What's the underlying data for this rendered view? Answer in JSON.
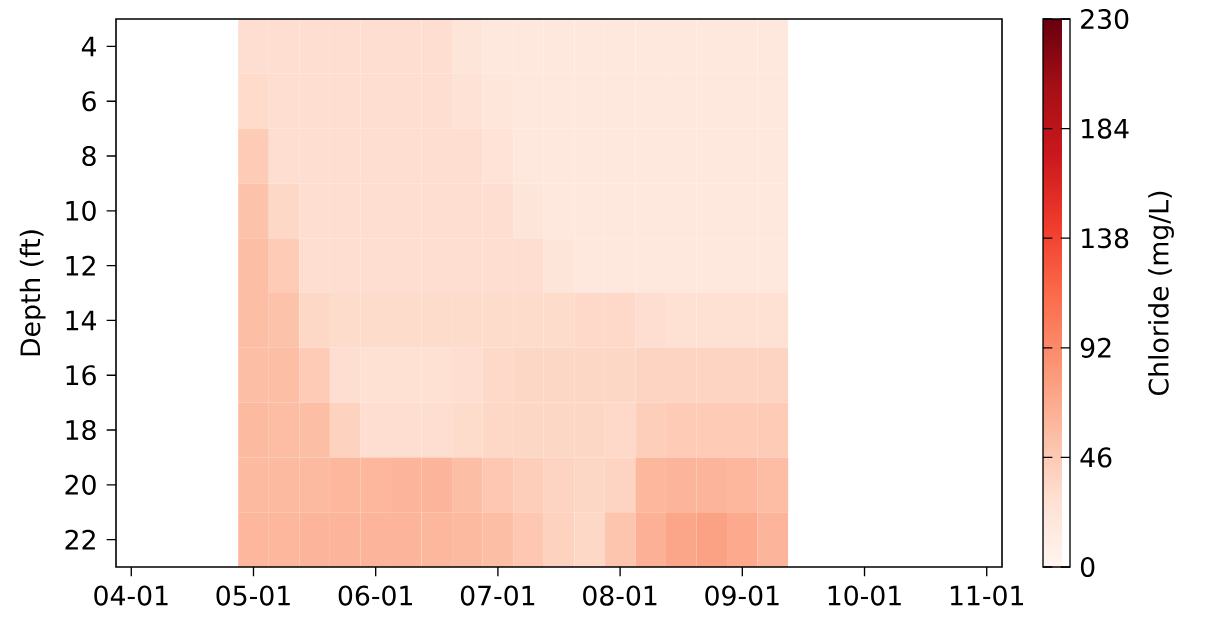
{
  "chart_data": {
    "type": "heatmap",
    "ylabel": "Depth (ft)",
    "clabel": "Chloride (mg/L)",
    "categories": [
      "04-01",
      null,
      null,
      null,
      "05-01",
      null,
      null,
      null,
      "06-01",
      null,
      null,
      null,
      "07-01",
      null,
      null,
      null,
      "08-01",
      null,
      null,
      null,
      "09-01",
      null,
      null,
      null,
      "10-01",
      null,
      null,
      null,
      "11-01"
    ],
    "y_categories": [
      "4",
      "6",
      "8",
      "10",
      "12",
      "14",
      "16",
      "18",
      "20",
      "22"
    ],
    "cells": [
      [
        null,
        null,
        null,
        null,
        30,
        30,
        30,
        30,
        30,
        30,
        30,
        22,
        18,
        18,
        18,
        18,
        18,
        18,
        18,
        18,
        18,
        18,
        null,
        null,
        null,
        null,
        null,
        null,
        null
      ],
      [
        null,
        null,
        null,
        null,
        33,
        30,
        30,
        30,
        30,
        30,
        30,
        26,
        20,
        18,
        18,
        18,
        18,
        18,
        18,
        18,
        18,
        18,
        null,
        null,
        null,
        null,
        null,
        null,
        null
      ],
      [
        null,
        null,
        null,
        null,
        45,
        30,
        30,
        30,
        30,
        30,
        30,
        30,
        25,
        18,
        18,
        18,
        18,
        18,
        18,
        18,
        18,
        18,
        null,
        null,
        null,
        null,
        null,
        null,
        null
      ],
      [
        null,
        null,
        null,
        null,
        52,
        35,
        30,
        30,
        30,
        30,
        30,
        30,
        30,
        22,
        18,
        18,
        18,
        18,
        18,
        18,
        18,
        18,
        null,
        null,
        null,
        null,
        null,
        null,
        null
      ],
      [
        null,
        null,
        null,
        null,
        55,
        45,
        30,
        30,
        30,
        30,
        30,
        30,
        30,
        30,
        22,
        19,
        19,
        19,
        19,
        19,
        19,
        19,
        null,
        null,
        null,
        null,
        null,
        null,
        null
      ],
      [
        null,
        null,
        null,
        null,
        55,
        52,
        35,
        32,
        32,
        32,
        32,
        32,
        32,
        32,
        32,
        34,
        34,
        30,
        28,
        28,
        28,
        28,
        null,
        null,
        null,
        null,
        null,
        null,
        null
      ],
      [
        null,
        null,
        null,
        null,
        55,
        55,
        45,
        30,
        28,
        28,
        28,
        30,
        34,
        36,
        36,
        36,
        36,
        38,
        38,
        38,
        38,
        38,
        null,
        null,
        null,
        null,
        null,
        null,
        null
      ],
      [
        null,
        null,
        null,
        null,
        58,
        56,
        55,
        40,
        30,
        30,
        30,
        32,
        35,
        36,
        36,
        36,
        34,
        42,
        45,
        45,
        45,
        45,
        null,
        null,
        null,
        null,
        null,
        null,
        null
      ],
      [
        null,
        null,
        null,
        null,
        58,
        58,
        58,
        60,
        60,
        62,
        62,
        55,
        48,
        42,
        38,
        36,
        38,
        60,
        62,
        62,
        60,
        56,
        null,
        null,
        null,
        null,
        null,
        null,
        null
      ],
      [
        null,
        null,
        null,
        null,
        60,
        60,
        62,
        62,
        62,
        62,
        60,
        58,
        55,
        48,
        40,
        35,
        50,
        65,
        72,
        75,
        70,
        62,
        null,
        null,
        null,
        null,
        null,
        null,
        null
      ]
    ],
    "clim": [
      0,
      230
    ],
    "cticks": [
      0,
      46,
      92,
      138,
      184,
      230
    ]
  }
}
